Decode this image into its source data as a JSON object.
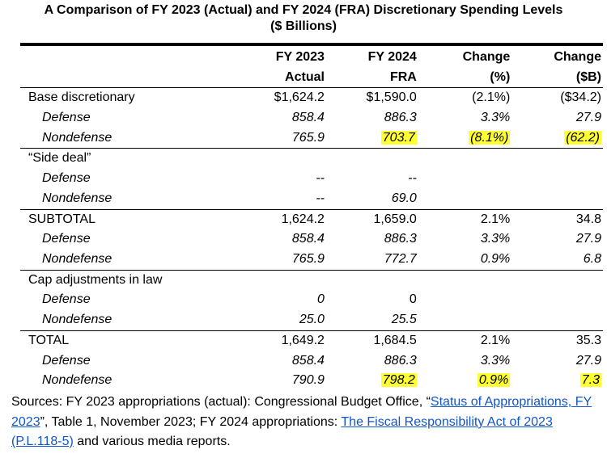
{
  "title_line1": "A Comparison of FY 2023 (Actual) and FY 2024 (FRA) Discretionary Spending Levels",
  "title_line2": "($ Billions)",
  "headers": {
    "col1_l1": "FY 2023",
    "col1_l2": "Actual",
    "col2_l1": "FY 2024",
    "col2_l2": "FRA",
    "col3_l1": "Change",
    "col3_l2": "(%)",
    "col4_l1": "Change",
    "col4_l2": "($B)"
  },
  "rows": [
    {
      "label": "Base discretionary",
      "fy23": "$1,624.2",
      "fy24": "$1,590.0",
      "pct": "(2.1%)",
      "usd": "($34.2)"
    },
    {
      "label": "Defense",
      "fy23": "858.4",
      "fy24": "886.3",
      "pct": "3.3%",
      "usd": "27.9"
    },
    {
      "label": "Nondefense",
      "fy23": "765.9",
      "fy24": "703.7",
      "pct": "(8.1%)",
      "usd": "(62.2)"
    },
    {
      "label": "“Side deal”",
      "fy23": "",
      "fy24": "",
      "pct": "",
      "usd": ""
    },
    {
      "label": "Defense",
      "fy23": "--",
      "fy24": "--",
      "pct": "",
      "usd": ""
    },
    {
      "label": "Nondefense",
      "fy23": "--",
      "fy24": "69.0",
      "pct": "",
      "usd": ""
    },
    {
      "label": "SUBTOTAL",
      "fy23": "1,624.2",
      "fy24": "1,659.0",
      "pct": "2.1%",
      "usd": "34.8"
    },
    {
      "label": "Defense",
      "fy23": "858.4",
      "fy24": "886.3",
      "pct": "3.3%",
      "usd": "27.9"
    },
    {
      "label": "Nondefense",
      "fy23": "765.9",
      "fy24": "772.7",
      "pct": "0.9%",
      "usd": "6.8"
    },
    {
      "label": "Cap adjustments in law",
      "fy23": "",
      "fy24": "",
      "pct": "",
      "usd": ""
    },
    {
      "label": "Defense",
      "fy23": "0",
      "fy24": "0",
      "pct": "",
      "usd": ""
    },
    {
      "label": "Nondefense",
      "fy23": "25.0",
      "fy24": "25.5",
      "pct": "",
      "usd": ""
    },
    {
      "label": "TOTAL",
      "fy23": "1,649.2",
      "fy24": "1,684.5",
      "pct": "2.1%",
      "usd": "35.3"
    },
    {
      "label": "Defense",
      "fy23": "858.4",
      "fy24": "886.3",
      "pct": "3.3%",
      "usd": "27.9"
    },
    {
      "label": "Nondefense",
      "fy23": "790.9",
      "fy24": "798.2",
      "pct": "0.9%",
      "usd": "7.3"
    }
  ],
  "highlight_color": "#ffff33",
  "sources": {
    "prefix": "Sources: FY 2023 appropriations (actual): Congressional Budget Office, “",
    "link1": "Status of Appropriations, FY 2023",
    "mid": "”, Table 1, November 2023; FY 2024 appropriations: ",
    "link2": "The Fiscal Responsibility Act of 2023 (P.L.118-5)",
    "suffix": " and various media reports."
  }
}
